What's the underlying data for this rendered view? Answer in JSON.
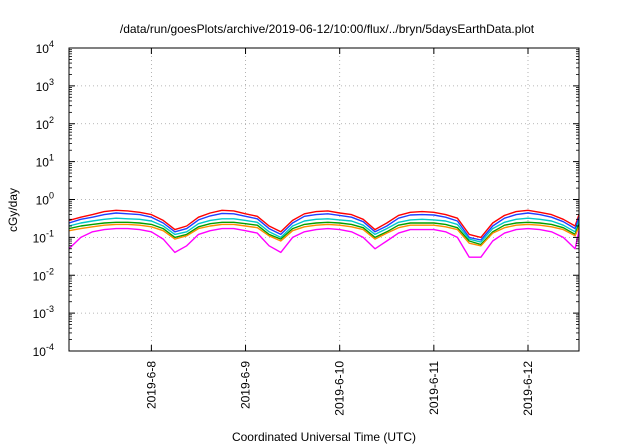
{
  "chart_data": {
    "type": "line",
    "title": "/data/run/goesPlots/archive/2019-06-12/10:00/flux/../bryn/5daysEarthData.plot",
    "xlabel": "Coordinated Universal Time (UTC)",
    "ylabel": "cGy/day",
    "yscale": "log",
    "ylim": [
      0.0001,
      10000
    ],
    "y_tick_labels": [
      {
        "base": "10",
        "exp": "-4",
        "value": 0.0001
      },
      {
        "base": "10",
        "exp": "-3",
        "value": 0.001
      },
      {
        "base": "10",
        "exp": "-2",
        "value": 0.01
      },
      {
        "base": "10",
        "exp": "-1",
        "value": 0.1
      },
      {
        "base": "10",
        "exp": "0",
        "value": 1
      },
      {
        "base": "10",
        "exp": "1",
        "value": 10
      },
      {
        "base": "10",
        "exp": "2",
        "value": 100
      },
      {
        "base": "10",
        "exp": "3",
        "value": 1000
      },
      {
        "base": "10",
        "exp": "4",
        "value": 10000
      }
    ],
    "xlim": [
      "2019-06-07T03:00",
      "2019-06-12T13:00"
    ],
    "x_ticks": [
      {
        "label": "2019-6-8",
        "value": "2019-06-08"
      },
      {
        "label": "2019-6-9",
        "value": "2019-06-09"
      },
      {
        "label": "2019-6-10",
        "value": "2019-06-10"
      },
      {
        "label": "2019-6-11",
        "value": "2019-06-11"
      },
      {
        "label": "2019-6-12",
        "value": "2019-06-12"
      }
    ],
    "grid": true,
    "legend": "none",
    "series": [
      {
        "color": "#ff0000",
        "x_start": "2019-06-07T03:00",
        "step_hours": 3,
        "values": [
          0.28,
          0.34,
          0.4,
          0.48,
          0.52,
          0.5,
          0.46,
          0.4,
          0.28,
          0.16,
          0.2,
          0.34,
          0.44,
          0.52,
          0.5,
          0.42,
          0.36,
          0.2,
          0.14,
          0.28,
          0.42,
          0.48,
          0.5,
          0.44,
          0.4,
          0.3,
          0.16,
          0.24,
          0.38,
          0.46,
          0.48,
          0.46,
          0.4,
          0.32,
          0.12,
          0.1,
          0.24,
          0.38,
          0.48,
          0.52,
          0.46,
          0.4,
          0.3,
          0.2,
          0.4
        ]
      },
      {
        "color": "#1f3fff",
        "x_start": "2019-06-07T03:00",
        "step_hours": 3,
        "values": [
          0.24,
          0.3,
          0.34,
          0.4,
          0.44,
          0.42,
          0.4,
          0.34,
          0.24,
          0.14,
          0.17,
          0.29,
          0.37,
          0.43,
          0.42,
          0.36,
          0.31,
          0.17,
          0.12,
          0.24,
          0.36,
          0.4,
          0.42,
          0.38,
          0.34,
          0.26,
          0.14,
          0.2,
          0.32,
          0.39,
          0.4,
          0.39,
          0.34,
          0.27,
          0.1,
          0.085,
          0.2,
          0.32,
          0.4,
          0.44,
          0.4,
          0.34,
          0.26,
          0.17,
          0.34
        ]
      },
      {
        "color": "#00c8c8",
        "x_start": "2019-06-07T03:00",
        "step_hours": 3,
        "values": [
          0.2,
          0.24,
          0.27,
          0.3,
          0.32,
          0.31,
          0.3,
          0.27,
          0.2,
          0.12,
          0.14,
          0.23,
          0.28,
          0.31,
          0.31,
          0.28,
          0.25,
          0.14,
          0.1,
          0.2,
          0.27,
          0.3,
          0.31,
          0.29,
          0.27,
          0.21,
          0.12,
          0.17,
          0.25,
          0.29,
          0.3,
          0.29,
          0.27,
          0.22,
          0.09,
          0.075,
          0.17,
          0.25,
          0.3,
          0.32,
          0.3,
          0.27,
          0.21,
          0.14,
          0.27
        ]
      },
      {
        "color": "#00a000",
        "x_start": "2019-06-07T03:00",
        "step_hours": 3,
        "values": [
          0.17,
          0.2,
          0.22,
          0.24,
          0.25,
          0.25,
          0.24,
          0.22,
          0.17,
          0.1,
          0.12,
          0.19,
          0.23,
          0.25,
          0.25,
          0.23,
          0.21,
          0.12,
          0.09,
          0.17,
          0.22,
          0.24,
          0.25,
          0.24,
          0.22,
          0.18,
          0.1,
          0.14,
          0.21,
          0.24,
          0.24,
          0.24,
          0.22,
          0.18,
          0.08,
          0.065,
          0.14,
          0.21,
          0.24,
          0.25,
          0.24,
          0.22,
          0.18,
          0.12,
          0.22
        ]
      },
      {
        "color": "#ff8c00",
        "x_start": "2019-06-07T03:00",
        "step_hours": 3,
        "values": [
          0.15,
          0.17,
          0.19,
          0.21,
          0.22,
          0.22,
          0.21,
          0.19,
          0.15,
          0.09,
          0.11,
          0.17,
          0.2,
          0.22,
          0.22,
          0.2,
          0.18,
          0.11,
          0.08,
          0.15,
          0.19,
          0.21,
          0.22,
          0.21,
          0.19,
          0.16,
          0.09,
          0.13,
          0.18,
          0.21,
          0.21,
          0.21,
          0.19,
          0.16,
          0.07,
          0.06,
          0.13,
          0.18,
          0.21,
          0.22,
          0.21,
          0.19,
          0.16,
          0.11,
          0.19
        ]
      },
      {
        "color": "#ff00ff",
        "x_start": "2019-06-07T03:00",
        "step_hours": 3,
        "values": [
          0.05,
          0.1,
          0.14,
          0.16,
          0.17,
          0.17,
          0.16,
          0.14,
          0.09,
          0.04,
          0.06,
          0.12,
          0.15,
          0.17,
          0.17,
          0.15,
          0.13,
          0.06,
          0.04,
          0.1,
          0.14,
          0.16,
          0.17,
          0.16,
          0.14,
          0.1,
          0.05,
          0.08,
          0.13,
          0.16,
          0.16,
          0.16,
          0.14,
          0.1,
          0.03,
          0.03,
          0.08,
          0.13,
          0.16,
          0.17,
          0.16,
          0.14,
          0.1,
          0.05,
          0.15
        ]
      }
    ]
  }
}
